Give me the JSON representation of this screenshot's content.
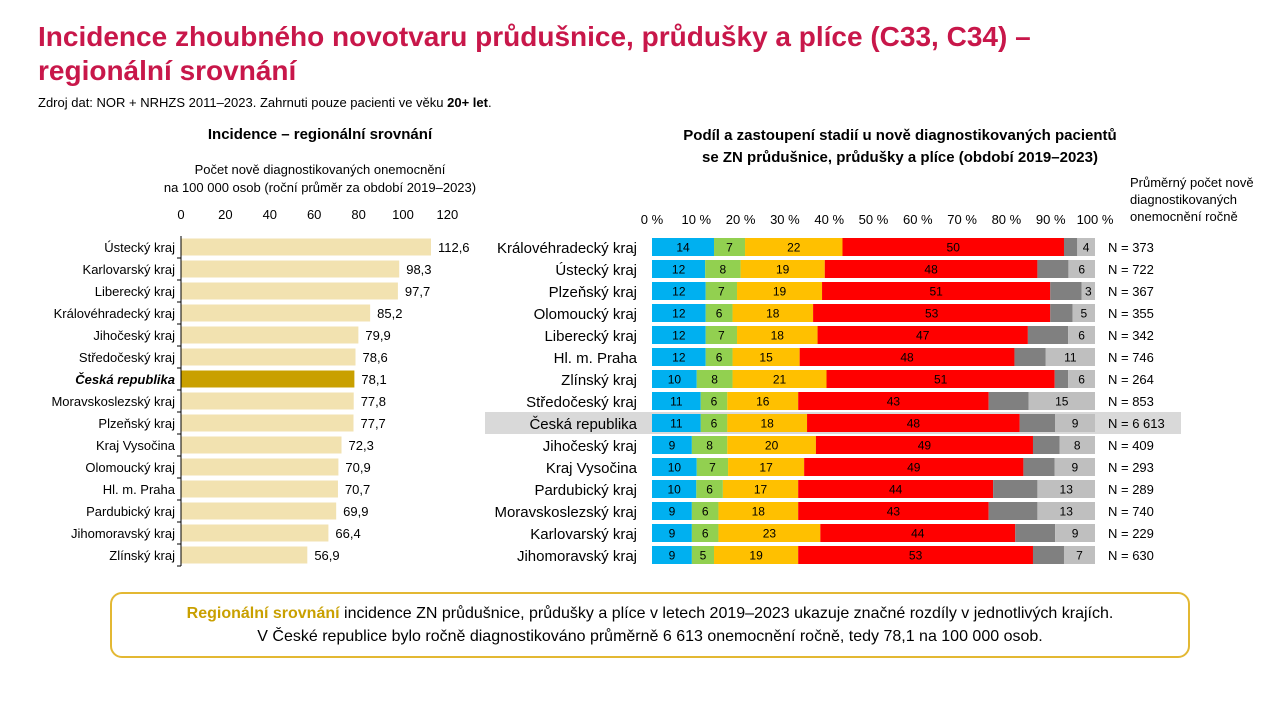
{
  "title": "Incidence zhoubného novotvaru průdušnice, průdušky a plíce (C33, C34) – regionální srovnání",
  "source": {
    "text": "Zdroj dat: NOR + NRHZS 2011–2023. Zahrnuti pouze pacienti ve věku ",
    "bold": "20+ let",
    "end": "."
  },
  "left_panel": {
    "title": "Incidence – regionální srovnání",
    "subtitle_1": "Počet nově diagnostikovaných onemocnění",
    "subtitle_2": "na 100 000 osob (roční průměr za období 2019–2023)"
  },
  "right_panel": {
    "title_1": "Podíl a zastoupení stadií u nově diagnostikovaných pacientů",
    "title_2": "se ZN průdušnice, průdušky a plíce (období 2019–2023)",
    "n_header": "Průměrný počet nově diagnostikovaných onemocnění ročně"
  },
  "note": {
    "highlight": "Regionální srovnání",
    "line_1": " incidence ZN průdušnice, průdušky a plíce v letech 2019–2023 ukazuje značné rozdíly v jednotlivých krajích.",
    "line_2": "V České republice bylo ročně diagnostikováno průměrně 6 613 onemocnění ročně, tedy 78,1 na 100 000 osob."
  },
  "colors": {
    "bar": "#f2e2b0",
    "bar_highlight": "#c9a000",
    "stage_1": "#00b0f0",
    "stage_2": "#92d050",
    "stage_3": "#ffc000",
    "stage_4": "#ff0000",
    "stage_x": "#808080",
    "stage_unknown": "#bfbfbf",
    "row_highlight": "#d9d9d9"
  },
  "chart_data": [
    {
      "type": "bar",
      "orientation": "horizontal",
      "title": "Incidence – regionální srovnání",
      "xlabel": "Počet nově diagnostikovaných onemocnění na 100 000 osob (roční průměr za období 2019–2023)",
      "xlim": [
        0,
        120
      ],
      "xticks": [
        "0",
        "20",
        "40",
        "60",
        "80",
        "100",
        "120"
      ],
      "tick_values": [
        0,
        20,
        40,
        60,
        80,
        100,
        120
      ],
      "highlight": "Česká republika",
      "categories": [
        "Ústecký kraj",
        "Karlovarský kraj",
        "Liberecký kraj",
        "Královéhradecký kraj",
        "Jihočeský kraj",
        "Středočeský kraj",
        "Česká republika",
        "Moravskoslezský kraj",
        "Plzeňský kraj",
        "Kraj Vysočina",
        "Olomoucký kraj",
        "Hl. m. Praha",
        "Pardubický kraj",
        "Jihomoravský kraj",
        "Zlínský kraj"
      ],
      "values": [
        112.6,
        98.3,
        97.7,
        85.2,
        79.9,
        78.6,
        78.1,
        77.8,
        77.7,
        72.3,
        70.9,
        70.7,
        69.9,
        66.4,
        56.9
      ],
      "value_labels": [
        "112,6",
        "98,3",
        "97,7",
        "85,2",
        "79,9",
        "78,6",
        "78,1",
        "77,8",
        "77,7",
        "72,3",
        "70,9",
        "70,7",
        "69,9",
        "66,4",
        "56,9"
      ]
    },
    {
      "type": "bar",
      "orientation": "horizontal",
      "stacked": true,
      "percent": true,
      "title": "Podíl a zastoupení stadií u nově diagnostikovaných pacientů se ZN průdušnice, průdušky a plíce (období 2019–2023)",
      "xlim": [
        0,
        100
      ],
      "xticks": [
        "0 %",
        "10 %",
        "20 %",
        "30 %",
        "40 %",
        "50 %",
        "60 %",
        "70 %",
        "80 %",
        "90 %",
        "100 %"
      ],
      "highlight": "Česká republika",
      "categories": [
        "Královéhradecký kraj",
        "Ústecký kraj",
        "Plzeňský kraj",
        "Olomoucký kraj",
        "Liberecký kraj",
        "Hl. m. Praha",
        "Zlínský kraj",
        "Středočeský kraj",
        "Česká republika",
        "Jihočeský kraj",
        "Kraj Vysočina",
        "Pardubický kraj",
        "Moravskoslezský kraj",
        "Karlovarský kraj",
        "Jihomoravský kraj"
      ],
      "series": [
        {
          "values": [
            14,
            12,
            12,
            12,
            12,
            12,
            10,
            11,
            11,
            9,
            10,
            10,
            9,
            9,
            9
          ]
        },
        {
          "values": [
            7,
            8,
            7,
            6,
            7,
            6,
            8,
            6,
            6,
            8,
            7,
            6,
            6,
            6,
            5
          ]
        },
        {
          "values": [
            22,
            19,
            19,
            18,
            18,
            15,
            21,
            16,
            18,
            20,
            17,
            17,
            18,
            23,
            19
          ]
        },
        {
          "values": [
            50,
            48,
            51,
            53,
            47,
            48,
            51,
            43,
            48,
            49,
            49,
            44,
            43,
            44,
            53
          ]
        },
        {
          "values": [
            3,
            7,
            7,
            5,
            9,
            7,
            3,
            9,
            8,
            6,
            7,
            10,
            11,
            9,
            7
          ]
        },
        {
          "values": [
            4,
            6,
            3,
            5,
            6,
            11,
            6,
            15,
            9,
            8,
            9,
            13,
            13,
            9,
            7
          ]
        }
      ],
      "segment_labels": [
        [
          "14",
          "7",
          "22",
          "50",
          "",
          "4"
        ],
        [
          "12",
          "8",
          "19",
          "48",
          "",
          "6"
        ],
        [
          "12",
          "7",
          "19",
          "51",
          "",
          "3"
        ],
        [
          "12",
          "6",
          "18",
          "53",
          "",
          "5"
        ],
        [
          "12",
          "7",
          "18",
          "47",
          "",
          "6"
        ],
        [
          "12",
          "6",
          "15",
          "48",
          "",
          "11"
        ],
        [
          "10",
          "8",
          "21",
          "51",
          "",
          "6"
        ],
        [
          "11",
          "6",
          "16",
          "43",
          "",
          "15"
        ],
        [
          "11",
          "6",
          "18",
          "48",
          "",
          "9"
        ],
        [
          "9",
          "8",
          "20",
          "49",
          "",
          "8"
        ],
        [
          "10",
          "7",
          "17",
          "49",
          "",
          "9"
        ],
        [
          "10",
          "6",
          "17",
          "44",
          "",
          "13"
        ],
        [
          "9",
          "6",
          "18",
          "43",
          "",
          "13"
        ],
        [
          "9",
          "6",
          "23",
          "44",
          "",
          "9"
        ],
        [
          "9",
          "5",
          "19",
          "53",
          "",
          "7"
        ]
      ],
      "n_labels": [
        "N = 373",
        "N = 722",
        "N = 367",
        "N = 355",
        "N = 342",
        "N = 746",
        "N = 264",
        "N = 853",
        "N = 6 613",
        "N = 409",
        "N = 293",
        "N = 289",
        "N = 740",
        "N = 229",
        "N = 630"
      ]
    }
  ]
}
